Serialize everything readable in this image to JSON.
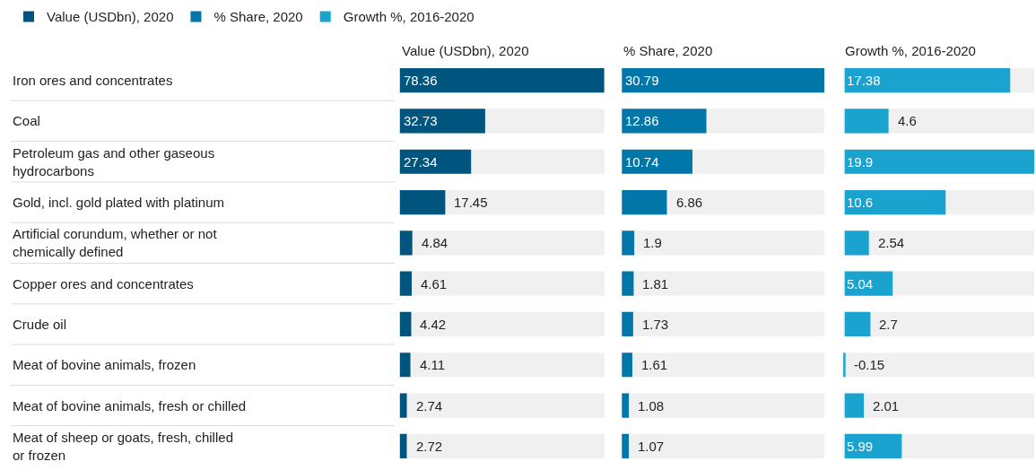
{
  "chart_data": [
    {
      "type": "bar",
      "orientation": "horizontal",
      "title": "Value (USDbn), 2020",
      "categories": [
        "Iron ores and concentrates",
        "Coal",
        "Petroleum gas and other gaseous hydrocarbons",
        "Gold, incl. gold plated with platinum",
        "Artificial corundum, whether or not chemically defined",
        "Copper ores and concentrates",
        "Crude oil",
        "Meat of bovine animals, frozen",
        "Meat of bovine animals, fresh or chilled",
        "Meat of sheep or goats, fresh, chilled or frozen"
      ],
      "series": [
        {
          "name": "Value (USDbn), 2020",
          "color": "#00557f",
          "values": [
            78.36,
            32.73,
            27.34,
            17.45,
            4.84,
            4.61,
            4.42,
            4.11,
            2.74,
            2.72
          ]
        }
      ],
      "xlim": [
        0,
        78.36
      ],
      "data_labels": true,
      "tick_labels": "y",
      "legend": "top left",
      "grid": false
    },
    {
      "type": "bar",
      "orientation": "horizontal",
      "title": "% Share, 2020",
      "series": [
        {
          "name": "% Share, 2020",
          "color": "#0077a8",
          "values": [
            30.79,
            12.86,
            10.74,
            6.86,
            1.9,
            1.81,
            1.73,
            1.61,
            1.08,
            1.07
          ]
        }
      ],
      "xlim": [
        0,
        30.79
      ],
      "data_labels": true,
      "tick_labels": false,
      "legend": "top left",
      "grid": false
    },
    {
      "type": "bar",
      "orientation": "horizontal",
      "title": "Growth %, 2016-2020",
      "series": [
        {
          "name": "Growth %, 2016-2020",
          "color": "#1ba3d0",
          "values": [
            17.38,
            4.6,
            19.9,
            10.6,
            2.54,
            5.04,
            2.7,
            -0.15,
            2.01,
            5.99
          ]
        }
      ],
      "xlim": [
        -0.2,
        19.9
      ],
      "data_labels": true,
      "tick_labels": false,
      "legend": "top left",
      "grid": false
    }
  ]
}
